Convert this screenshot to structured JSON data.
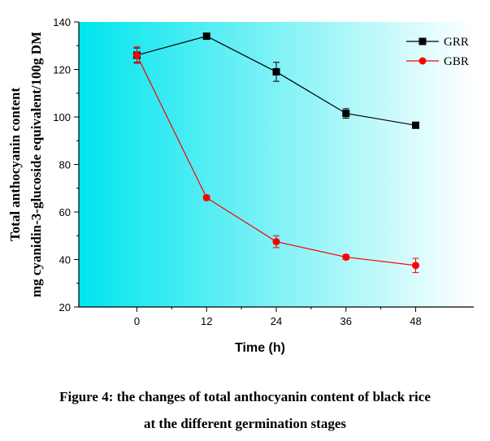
{
  "chart_data": {
    "type": "line",
    "x": [
      0,
      12,
      24,
      36,
      48
    ],
    "xlabel": "Time (h)",
    "ylabel_lines": [
      "Total anthocyanin content",
      "mg cyanidin-3-glucoside equivalent/100g DM"
    ],
    "xlim": [
      -10,
      58
    ],
    "ylim": [
      20,
      140
    ],
    "xticks": [
      0,
      12,
      24,
      36,
      48
    ],
    "yticks": [
      20,
      40,
      60,
      80,
      100,
      120,
      140
    ],
    "grid": false,
    "legend_position": "top-right",
    "background": "gradient cyan to white (left to right)",
    "series": [
      {
        "name": "GRR",
        "color": "#000000",
        "marker": "square",
        "values": [
          126,
          134,
          119,
          101.5,
          96.5
        ],
        "errors": [
          3,
          1,
          4,
          2,
          1
        ]
      },
      {
        "name": "GBR",
        "color": "#ff0000",
        "marker": "circle",
        "values": [
          126,
          66,
          47.5,
          41,
          37.5
        ],
        "errors": [
          3.5,
          1,
          2.5,
          1,
          3
        ]
      }
    ]
  },
  "caption": {
    "line1": "Figure 4: the changes of total anthocyanin content of black rice",
    "line2": "at the different germination stages"
  },
  "colors": {
    "gradient_start": "#00e5ee",
    "gradient_end": "#ffffff",
    "axis": "#000000"
  }
}
